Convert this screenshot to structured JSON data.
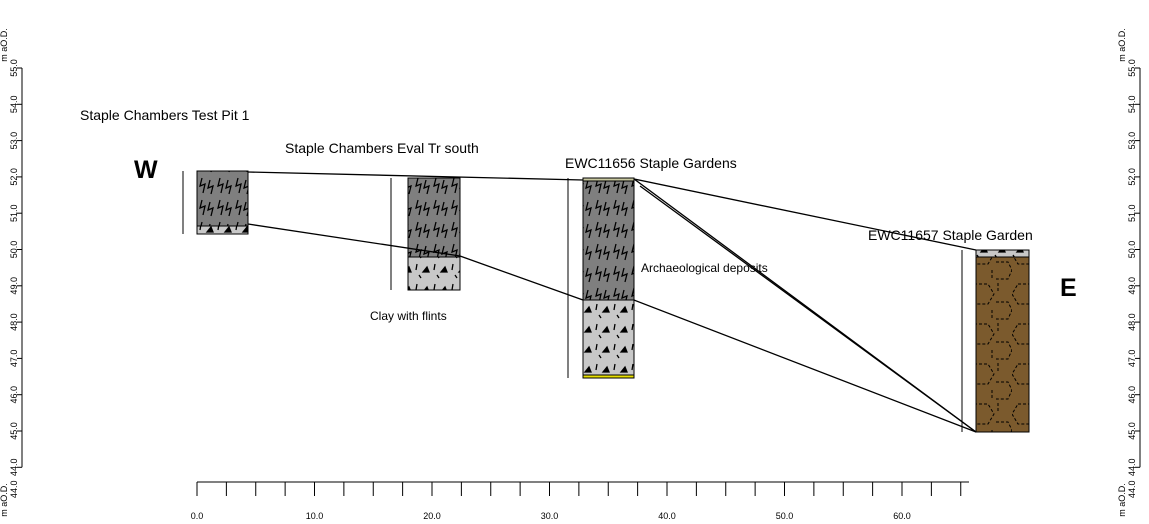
{
  "profiles": [
    {
      "label": "Staple Chambers Test Pit 1"
    },
    {
      "label": "Staple Chambers Eval Tr  south"
    },
    {
      "label": "EWC11656 Staple Gardens"
    },
    {
      "label": "EWC11657 Staple Garden"
    }
  ],
  "annotations": {
    "west": "W",
    "east": "E",
    "deposits": "Archaeological deposits",
    "clay": "Clay with flints"
  },
  "left_axis": {
    "unit": "m aO.D.",
    "ticks": [
      "55.0",
      "54.0",
      "53.0",
      "52.0",
      "51.0",
      "50.0",
      "49.0",
      "48.0",
      "47.0",
      "46.0",
      "45.0",
      "44.0"
    ]
  },
  "right_axis": {
    "unit": "m aO.D.",
    "ticks": [
      "55.0",
      "54.0",
      "53.0",
      "52.0",
      "51.0",
      "50.0",
      "49.0",
      "48.0",
      "47.0",
      "46.0",
      "45.0",
      "44.0"
    ]
  },
  "distance_axis": {
    "ticks": [
      "0.0",
      "10.0",
      "20.0",
      "30.0",
      "40.0",
      "50.0",
      "60.0"
    ]
  }
}
